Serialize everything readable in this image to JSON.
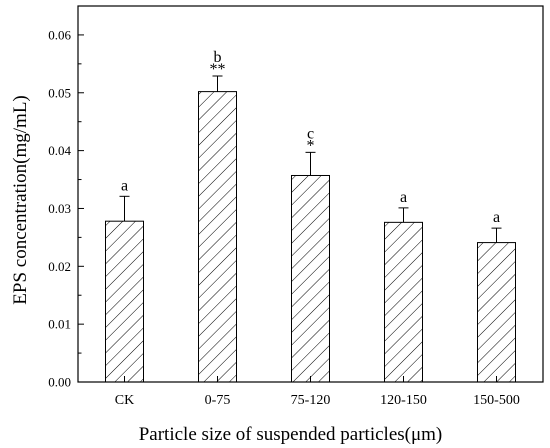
{
  "chart_data": {
    "type": "bar",
    "title": "",
    "xlabel": "Particle size of suspended particles(μm)",
    "ylabel": "EPS concentration(mg/mL)",
    "categories": [
      "CK",
      "0-75",
      "75-120",
      "120-150",
      "150-500"
    ],
    "values": [
      0.0278,
      0.0502,
      0.0357,
      0.0276,
      0.0241
    ],
    "errors": [
      0.0043,
      0.0027,
      0.004,
      0.0025,
      0.0025
    ],
    "letters": [
      "a",
      "b",
      "c",
      "a",
      "a"
    ],
    "stars": [
      "",
      "**",
      "*",
      "",
      ""
    ],
    "ylim": [
      0,
      0.065
    ],
    "yticks": [
      "0.00",
      "0.01",
      "0.02",
      "0.03",
      "0.04",
      "0.05",
      "0.06"
    ],
    "bar_fill": "hatched diagonal",
    "bar_color": "#000000",
    "grid": false,
    "legend": "none"
  }
}
